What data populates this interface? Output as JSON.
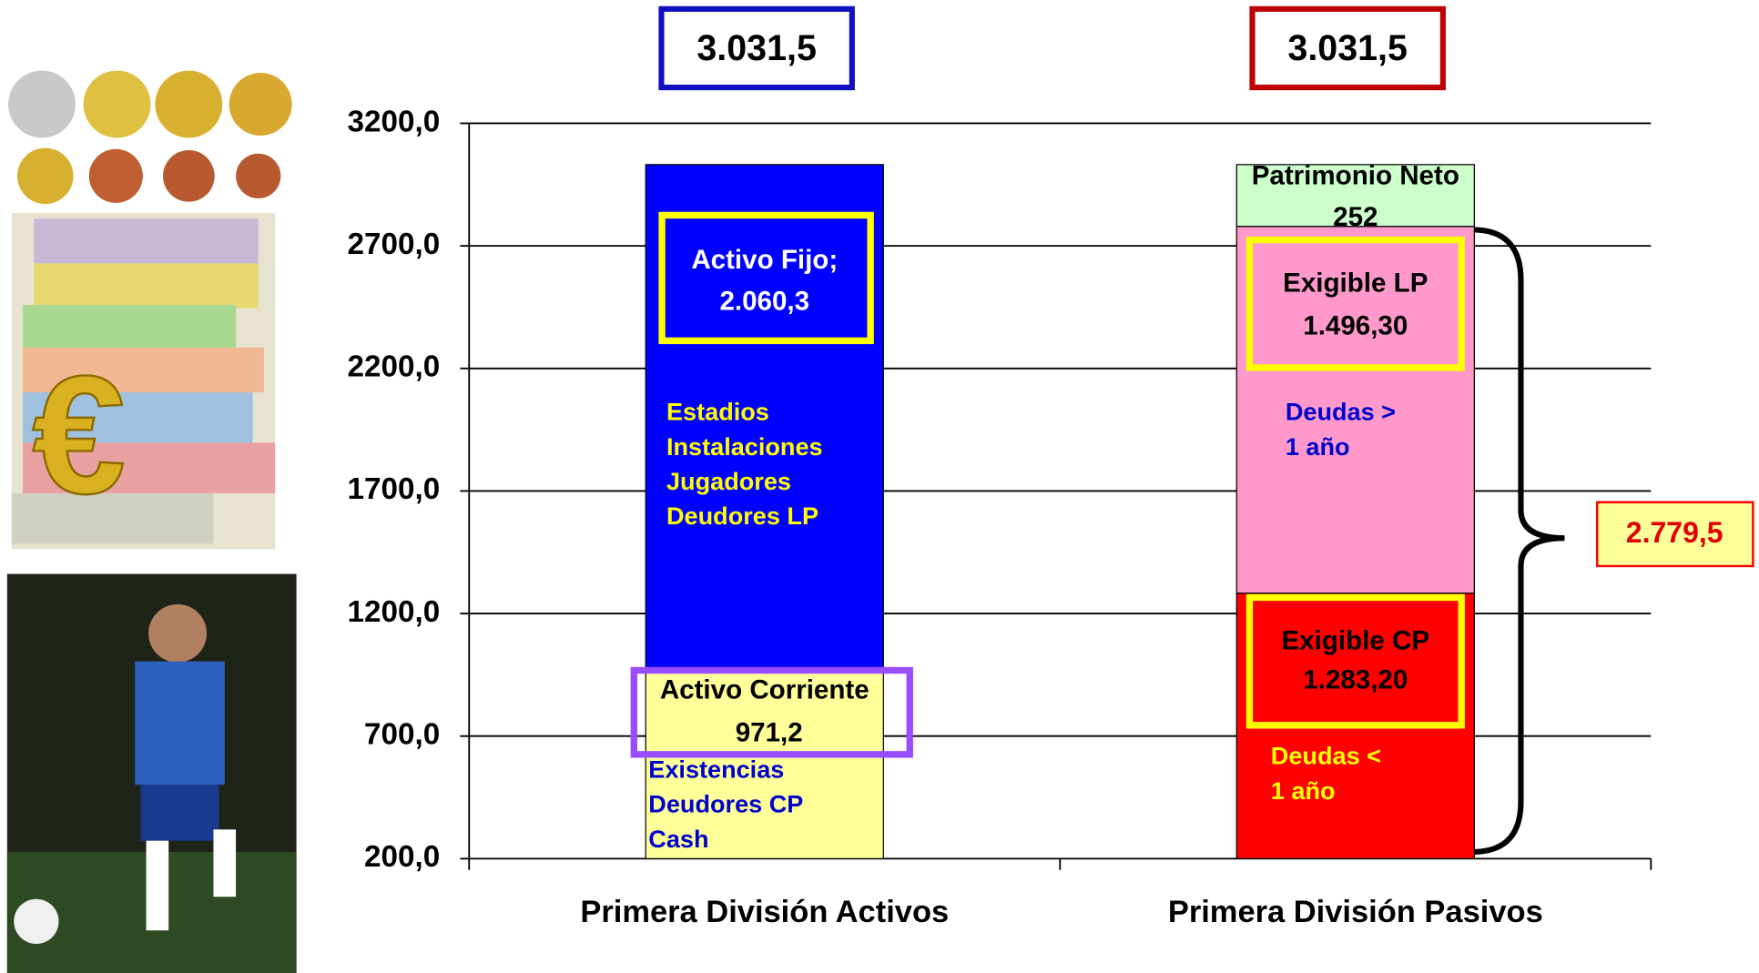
{
  "chart_data": {
    "type": "stacked_bar",
    "categories": [
      "Primera División Activos",
      "Primera División Pasivos"
    ],
    "series": [
      {
        "name": "Activo Corriente",
        "color": "#ffff99",
        "values": [
          971.2,
          null
        ],
        "value_labels": [
          "971,2",
          null
        ]
      },
      {
        "name": "Activo Fijo;",
        "color": "#0000ff",
        "values": [
          2060.3,
          null
        ],
        "value_labels": [
          "2.060,3",
          null
        ]
      },
      {
        "name": "Exigible CP",
        "color": "#ff0000",
        "values": [
          null,
          1283.2
        ],
        "value_labels": [
          null,
          "1.283,20"
        ]
      },
      {
        "name": "Exigible LP",
        "color": "#ff99cc",
        "values": [
          null,
          1496.3
        ],
        "value_labels": [
          null,
          "1.496,30"
        ]
      },
      {
        "name": "Patrimonio Neto",
        "color": "#ccffcc",
        "values": [
          null,
          252
        ],
        "value_labels": [
          null,
          "252"
        ]
      }
    ],
    "ylim": [
      200,
      3200
    ],
    "yticks": [
      {
        "value": 200,
        "label": "200,0"
      },
      {
        "value": 700,
        "label": "700,0"
      },
      {
        "value": 1200,
        "label": "1200,0"
      },
      {
        "value": 1700,
        "label": "1700,0"
      },
      {
        "value": 2200,
        "label": "2200,0"
      },
      {
        "value": 2700,
        "label": "2700,0"
      },
      {
        "value": 3200,
        "label": "3200,0"
      }
    ],
    "grid": true,
    "totals": [
      {
        "value": 3031.5,
        "label": "3.031,5"
      },
      {
        "value": 3031.5,
        "label": "3.031,5"
      }
    ],
    "bracket_total": {
      "value": 2779.5,
      "label": "2.779,5"
    },
    "notes": [
      {
        "series": 1,
        "lines": [
          "Estadios",
          "Instalaciones",
          "Jugadores",
          "Deudores LP"
        ]
      },
      {
        "series": 0,
        "lines": [
          "Existencias",
          "Deudores CP",
          "Cash"
        ]
      },
      {
        "series": 3,
        "lines": [
          "Deudas >",
          "1 año"
        ]
      },
      {
        "series": 2,
        "lines": [
          "Deudas <",
          "1 año"
        ]
      }
    ]
  }
}
